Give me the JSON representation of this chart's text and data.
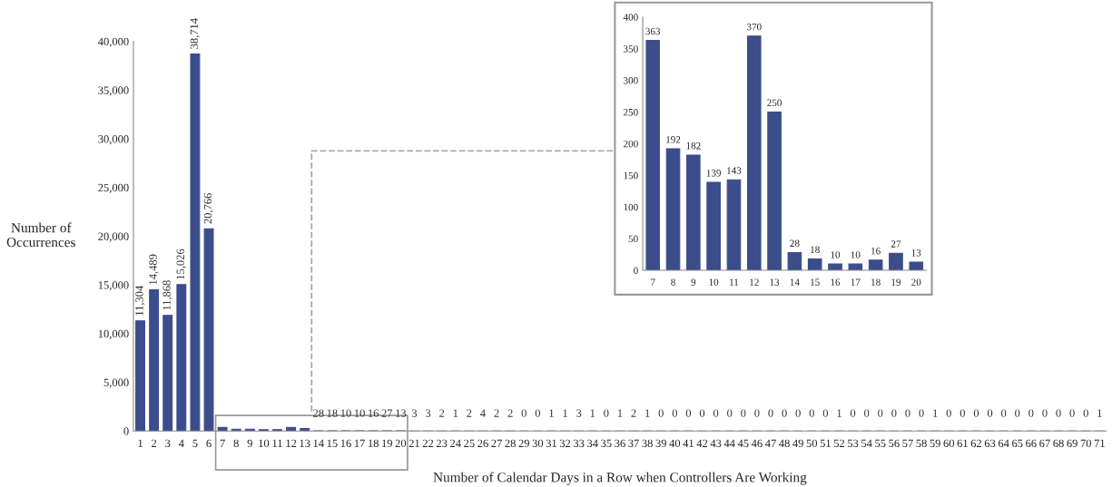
{
  "chart_data": [
    {
      "type": "bar",
      "xlabel": "Number of Calendar Days in a Row when Controllers Are Working",
      "ylabel": "Number of\nOccurrences",
      "categories": [
        "1",
        "2",
        "3",
        "4",
        "5",
        "6",
        "7",
        "8",
        "9",
        "10",
        "11",
        "12",
        "13",
        "14",
        "15",
        "16",
        "17",
        "18",
        "19",
        "20",
        "21",
        "22",
        "23",
        "24",
        "25",
        "26",
        "27",
        "28",
        "29",
        "30",
        "31",
        "32",
        "33",
        "34",
        "35",
        "36",
        "37",
        "38",
        "39",
        "40",
        "41",
        "42",
        "43",
        "44",
        "45",
        "46",
        "47",
        "48",
        "49",
        "50",
        "51",
        "52",
        "53",
        "54",
        "55",
        "56",
        "57",
        "58",
        "59",
        "60",
        "61",
        "62",
        "63",
        "64",
        "65",
        "66",
        "67",
        "68",
        "69",
        "70",
        "71"
      ],
      "values": [
        11304,
        14489,
        11868,
        15026,
        38714,
        20766,
        363,
        192,
        182,
        139,
        143,
        370,
        250,
        28,
        18,
        10,
        10,
        16,
        27,
        13,
        3,
        3,
        2,
        1,
        2,
        4,
        2,
        2,
        0,
        0,
        1,
        1,
        3,
        1,
        0,
        1,
        2,
        1,
        0,
        0,
        0,
        0,
        0,
        0,
        0,
        0,
        0,
        0,
        0,
        0,
        0,
        1,
        0,
        0,
        0,
        0,
        0,
        0,
        1,
        0,
        0,
        0,
        0,
        0,
        0,
        0,
        0,
        0,
        0,
        0,
        1
      ],
      "value_labels": [
        "11,304",
        "14,489",
        "11,868",
        "15,026",
        "38,714",
        "20,766",
        null,
        null,
        null,
        null,
        null,
        null,
        null,
        "28",
        "18",
        "10",
        "10",
        "16",
        "27",
        "13",
        "3",
        "3",
        "2",
        "1",
        "2",
        "4",
        "2",
        "2",
        "0",
        "0",
        "1",
        "1",
        "3",
        "1",
        "0",
        "1",
        "2",
        "1",
        "0",
        "0",
        "0",
        "0",
        "0",
        "0",
        "0",
        "0",
        "0",
        "0",
        "0",
        "0",
        "0",
        "1",
        "0",
        "0",
        "0",
        "0",
        "0",
        "0",
        "1",
        "0",
        "0",
        "0",
        "0",
        "0",
        "0",
        "0",
        "0",
        "0",
        "0",
        "0",
        "1"
      ],
      "color": "#3c4d8c",
      "ylim": [
        0,
        40000
      ],
      "yticks": [
        {
          "value": 0,
          "label": "0"
        },
        {
          "value": 5000,
          "label": "5,000"
        },
        {
          "value": 10000,
          "label": "10,000"
        },
        {
          "value": 15000,
          "label": "15,000"
        },
        {
          "value": 20000,
          "label": "20,000"
        },
        {
          "value": 25000,
          "label": "25,000"
        },
        {
          "value": 30000,
          "label": "30,000"
        },
        {
          "value": 35000,
          "label": "35,000"
        },
        {
          "value": 40000,
          "label": "40,000"
        }
      ],
      "grid": false,
      "legend": false
    },
    {
      "type": "bar",
      "categories": [
        "7",
        "8",
        "9",
        "10",
        "11",
        "12",
        "13",
        "14",
        "15",
        "16",
        "17",
        "18",
        "19",
        "20"
      ],
      "values": [
        363,
        192,
        182,
        139,
        143,
        370,
        250,
        28,
        18,
        10,
        10,
        16,
        27,
        13
      ],
      "color": "#3c4d8c",
      "ylim": [
        0,
        400
      ],
      "yticks": [
        0,
        50,
        100,
        150,
        200,
        250,
        300,
        350,
        400
      ],
      "data_labels": true,
      "grid": false,
      "legend": false
    }
  ]
}
